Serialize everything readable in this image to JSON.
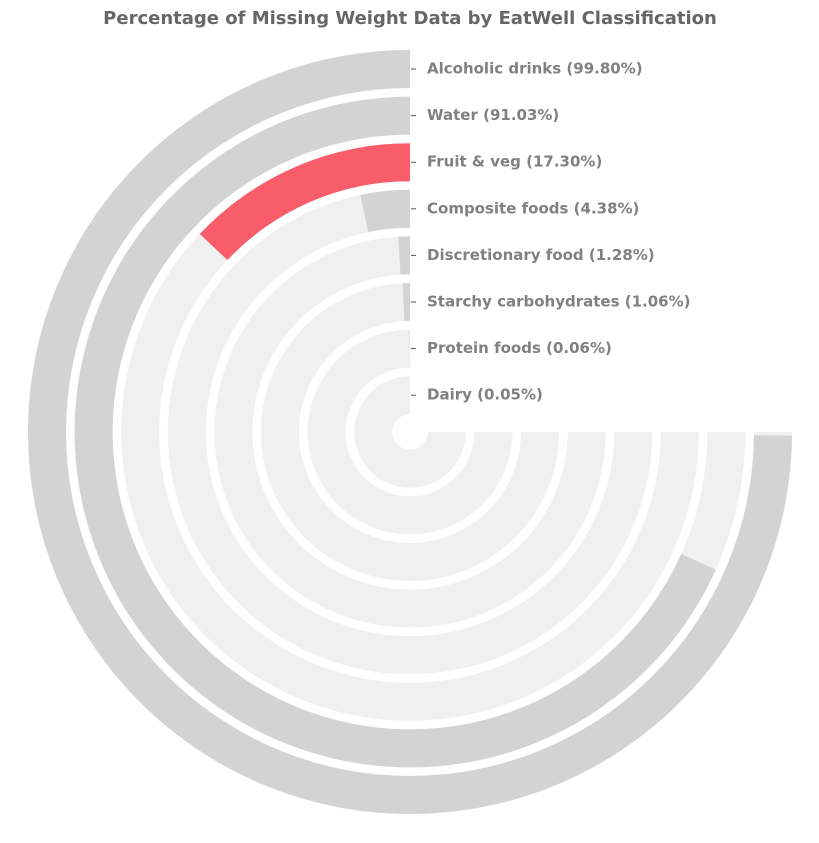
{
  "chart_data": {
    "type": "radial_bar",
    "title": "Percentage of Missing Weight Data by EatWell Classification",
    "categories": [
      "Alcoholic drinks (99.80%)",
      "Water (91.03%)",
      "Fruit & veg (17.30%)",
      "Composite foods (4.38%)",
      "Discretionary food (1.28%)",
      "Starchy carbohydrates (1.06%)",
      "Protein foods (0.06%)",
      "Dairy (0.05%)"
    ],
    "values": [
      99.8,
      91.03,
      17.3,
      4.38,
      1.28,
      1.06,
      0.06,
      0.05
    ],
    "colors": [
      "#d3d3d3",
      "#d3d3d3",
      "#f95d6a",
      "#d3d3d3",
      "#d3d3d3",
      "#d3d3d3",
      "#d3d3d3",
      "#d3d3d3"
    ],
    "track_color": "#f0f0f0",
    "ylim": [
      0,
      100
    ]
  }
}
